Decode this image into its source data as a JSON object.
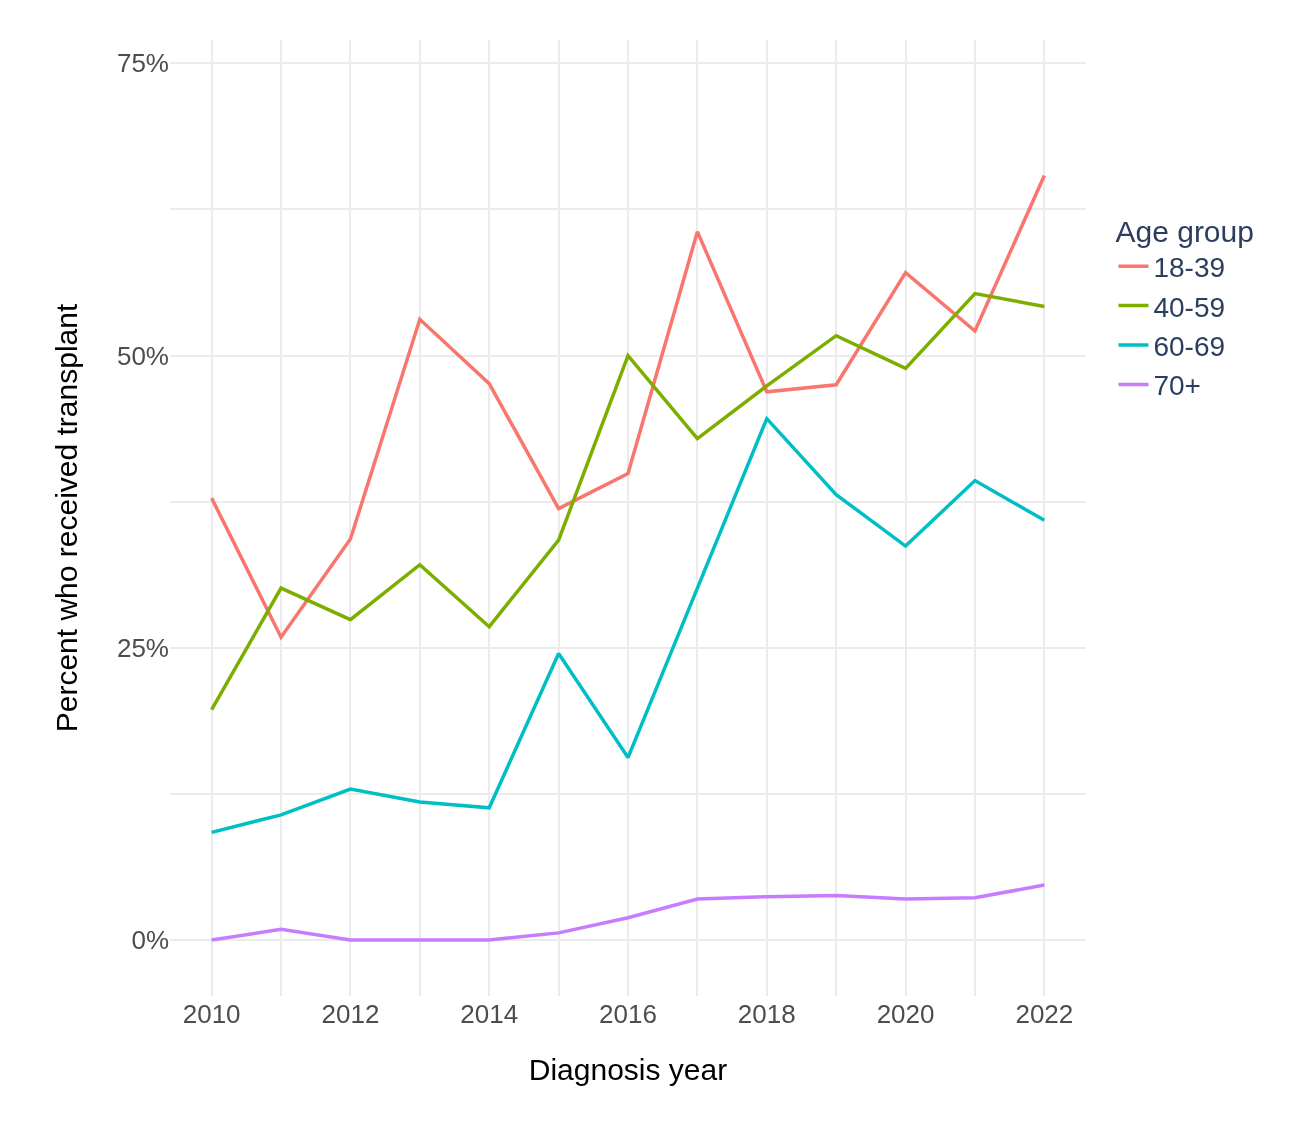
{
  "chart_data": {
    "type": "line",
    "xlabel": "Diagnosis year",
    "ylabel": "Percent who received transplant",
    "legend_title": "Age group",
    "x": [
      2010,
      2011,
      2012,
      2013,
      2014,
      2015,
      2016,
      2017,
      2018,
      2019,
      2020,
      2021,
      2022
    ],
    "series": [
      {
        "name": "18-39",
        "color": "#f8766d",
        "values": [
          37.8,
          25.9,
          34.3,
          53.1,
          47.6,
          36.9,
          39.9,
          60.6,
          46.9,
          47.5,
          57.1,
          52.1,
          65.4
        ]
      },
      {
        "name": "40-59",
        "color": "#7cae00",
        "values": [
          19.7,
          30.1,
          27.4,
          32.1,
          26.8,
          34.2,
          50.0,
          42.9,
          47.4,
          51.7,
          48.9,
          55.3,
          54.2
        ]
      },
      {
        "name": "60-69",
        "color": "#00bfc4",
        "values": [
          9.2,
          10.7,
          12.9,
          11.8,
          11.3,
          24.5,
          15.6,
          30.1,
          44.6,
          38.1,
          33.7,
          39.3,
          35.9
        ]
      },
      {
        "name": "70+",
        "color": "#c77cff",
        "values": [
          0,
          0.9,
          0,
          0,
          0,
          0.6,
          1.9,
          3.5,
          3.7,
          3.8,
          3.5,
          3.6,
          4.7
        ]
      }
    ],
    "xlim": [
      2009.4,
      2022.6
    ],
    "xticks": [
      2010,
      {
        "value": 2011,
        "label": null
      },
      2012,
      {
        "value": 2013,
        "label": null
      },
      2014,
      {
        "value": 2015,
        "label": null
      },
      2016,
      {
        "value": 2017,
        "label": null
      },
      2018,
      {
        "value": 2019,
        "label": null
      },
      2020,
      {
        "value": 2021,
        "label": null
      },
      2022
    ],
    "ylim": [
      -4.8,
      77
    ],
    "yticks": [
      {
        "value": 0,
        "label": "0%"
      },
      {
        "value": 12.5,
        "label": null
      },
      {
        "value": 25,
        "label": "25%"
      },
      {
        "value": 37.5,
        "label": null
      },
      {
        "value": 50,
        "label": "50%"
      },
      {
        "value": 62.5,
        "label": null
      },
      {
        "value": 75,
        "label": "75%"
      }
    ],
    "grid": true,
    "legend": "right",
    "marker": "none",
    "line_style": "solid"
  }
}
